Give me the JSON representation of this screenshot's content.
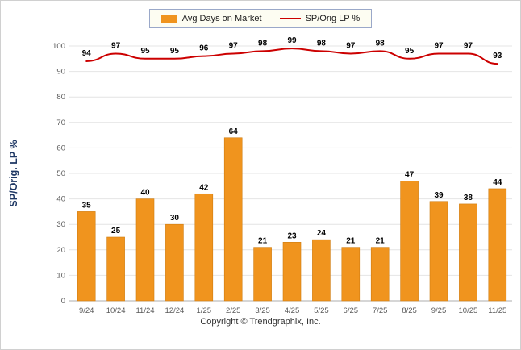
{
  "chart_data": {
    "type": "combo",
    "categories": [
      "9/24",
      "10/24",
      "11/24",
      "12/24",
      "1/25",
      "2/25",
      "3/25",
      "4/25",
      "5/25",
      "6/25",
      "7/25",
      "8/25",
      "9/25",
      "10/25",
      "11/25"
    ],
    "series": [
      {
        "name": "Avg Days on Market",
        "type": "bar",
        "color": "#F0941E",
        "values": [
          35,
          25,
          40,
          30,
          42,
          64,
          21,
          23,
          24,
          21,
          21,
          47,
          39,
          38,
          44
        ]
      },
      {
        "name": "SP/Orig LP %",
        "type": "line",
        "color": "#CC0000",
        "values": [
          94,
          97,
          95,
          95,
          96,
          97,
          98,
          99,
          98,
          97,
          98,
          95,
          97,
          97,
          93
        ]
      }
    ],
    "title": "",
    "xlabel": "",
    "ylabel": "SP/Orig. LP %",
    "ylim": [
      0,
      100
    ],
    "ytick_step": 10,
    "grid": true,
    "legend_position": "top"
  },
  "legend": {
    "items": [
      {
        "label": "Avg Days on Market",
        "color": "#F0941E",
        "marker": "square"
      },
      {
        "label": "SP/Orig LP %",
        "color": "#CC0000",
        "marker": "line"
      }
    ]
  },
  "footer": {
    "copyright": "Copyright © Trendgraphix, Inc."
  }
}
